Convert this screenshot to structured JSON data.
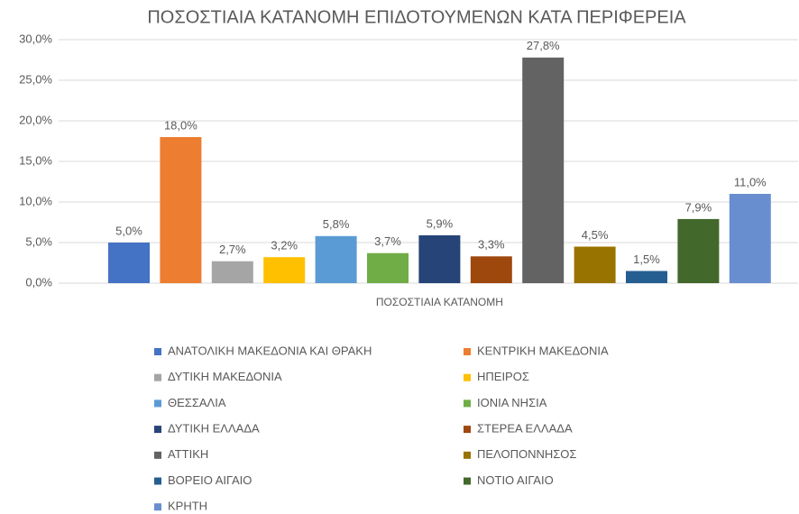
{
  "chart_data": {
    "type": "bar",
    "title": "ΠΟΣΟΣΤΙΑΙΑ  ΚΑΤΑΝΟΜΗ ΕΠΙΔΟΤΟΥΜΕΝΩΝ  ΚΑΤΑ ΠΕΡΙΦΕΡΕΙΑ",
    "categories": [
      "ΠΟΣΟΣΤΙΑΙΑ ΚΑΤΑΝΟΜΗ"
    ],
    "series": [
      {
        "name": "ΑΝΑΤΟΛΙΚΗ ΜΑΚΕΔΟΝΙΑ ΚΑΙ ΘΡΑΚΗ",
        "color": "#4472c4",
        "values": [
          5.0
        ],
        "value_labels": [
          "5,0%"
        ]
      },
      {
        "name": "ΚΕΝΤΡΙΚΗ ΜΑΚΕΔΟΝΙΑ",
        "color": "#ed7d31",
        "values": [
          18.0
        ],
        "value_labels": [
          "18,0%"
        ]
      },
      {
        "name": "ΔΥΤΙΚΗ ΜΑΚΕΔΟΝΙΑ",
        "color": "#a5a5a5",
        "values": [
          2.7
        ],
        "value_labels": [
          "2,7%"
        ]
      },
      {
        "name": "ΗΠΕΙΡΟΣ",
        "color": "#ffc000",
        "values": [
          3.2
        ],
        "value_labels": [
          "3,2%"
        ]
      },
      {
        "name": "ΘΕΣΣΑΛΙΑ",
        "color": "#5b9bd5",
        "values": [
          5.8
        ],
        "value_labels": [
          "5,8%"
        ]
      },
      {
        "name": "ΙΟΝΙΑ ΝΗΣΙΑ",
        "color": "#70ad47",
        "values": [
          3.7
        ],
        "value_labels": [
          "3,7%"
        ]
      },
      {
        "name": "ΔΥΤΙΚΗ ΕΛΛΑΔΑ",
        "color": "#264478",
        "values": [
          5.9
        ],
        "value_labels": [
          "5,9%"
        ]
      },
      {
        "name": "ΣΤΕΡΕΑ ΕΛΛΑΔΑ",
        "color": "#9e480e",
        "values": [
          3.3
        ],
        "value_labels": [
          "3,3%"
        ]
      },
      {
        "name": "ΑΤΤΙΚΗ",
        "color": "#636363",
        "values": [
          27.8
        ],
        "value_labels": [
          "27,8%"
        ]
      },
      {
        "name": "ΠΕΛΟΠΟΝΝΗΣΟΣ",
        "color": "#997300",
        "values": [
          4.5
        ],
        "value_labels": [
          "4,5%"
        ]
      },
      {
        "name": "ΒΟΡΕΙΟ ΑΙΓΑΙΟ",
        "color": "#255e91",
        "values": [
          1.5
        ],
        "value_labels": [
          "1,5%"
        ]
      },
      {
        "name": "ΝΟΤΙΟ ΑΙΓΑΙΟ",
        "color": "#43682b",
        "values": [
          7.9
        ],
        "value_labels": [
          "7,9%"
        ]
      },
      {
        "name": "ΚΡΗΤΗ",
        "color": "#698ed0",
        "values": [
          11.0
        ],
        "value_labels": [
          "11,0%"
        ]
      }
    ],
    "ylim": [
      0,
      30
    ],
    "yticks": [
      {
        "value": 0,
        "label": "0,0%"
      },
      {
        "value": 5,
        "label": "5,0%"
      },
      {
        "value": 10,
        "label": "10,0%"
      },
      {
        "value": 15,
        "label": "15,0%"
      },
      {
        "value": 20,
        "label": "20,0%"
      },
      {
        "value": 25,
        "label": "25,0%"
      },
      {
        "value": 30,
        "label": "30,0%"
      }
    ],
    "grid": true,
    "legend": "bottom"
  }
}
